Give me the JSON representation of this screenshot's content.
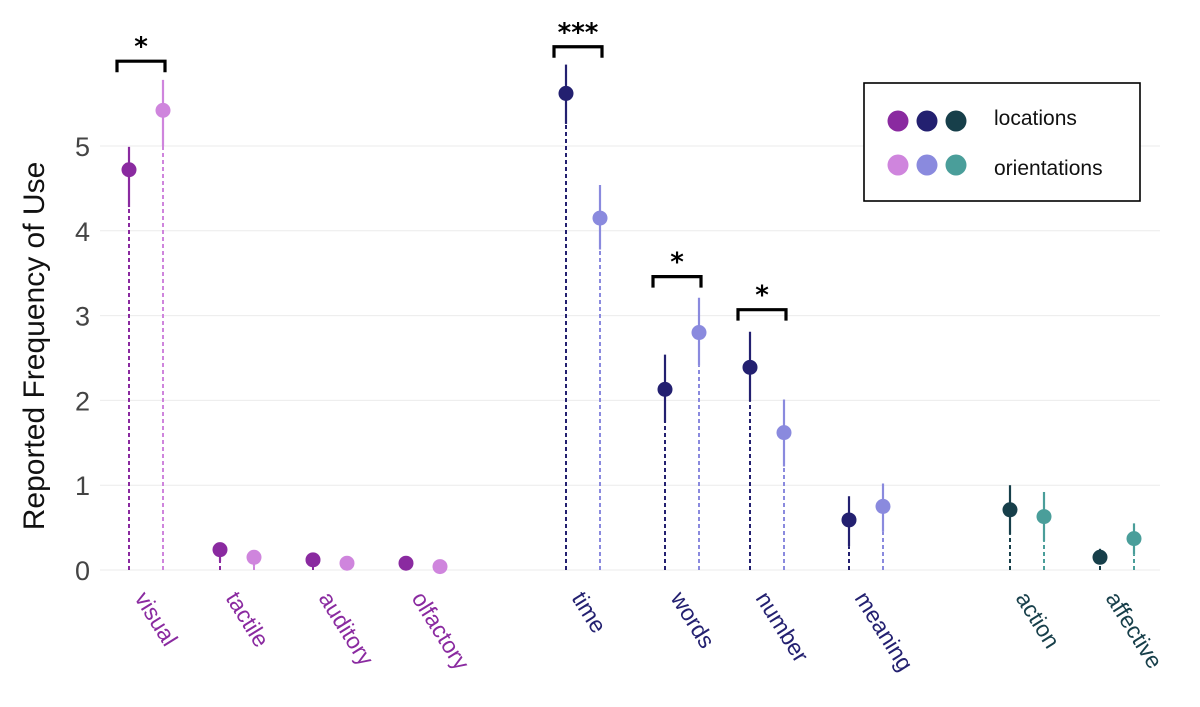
{
  "chart_data": {
    "type": "dot-whisker",
    "ylabel": "Reported Frequency of Use",
    "xlabel": "",
    "ylim": [
      0,
      6.35
    ],
    "yticks": [
      0,
      1,
      2,
      3,
      4,
      5
    ],
    "series": [
      {
        "name": "locations"
      },
      {
        "name": "orientations"
      }
    ],
    "legend": {
      "position": "top-right",
      "entries": [
        "locations",
        "orientations"
      ],
      "location_colors": [
        "#8a2aa0",
        "#232070",
        "#173f4a"
      ],
      "orientation_colors": [
        "#cf85dd",
        "#8a8ade",
        "#4a9e9a"
      ]
    },
    "categories": [
      {
        "label": "visual",
        "group": "sensory",
        "label_color": "#8a2aa0",
        "locations": {
          "value": 4.72,
          "low": 4.28,
          "high": 4.99,
          "color": "#8a2aa0"
        },
        "orientations": {
          "value": 5.42,
          "low": 5.0,
          "high": 5.78,
          "color": "#cf85dd"
        }
      },
      {
        "label": "tactile",
        "group": "sensory",
        "label_color": "#8a2aa0",
        "locations": {
          "value": 0.24,
          "low": 0.1,
          "high": 0.32,
          "color": "#8a2aa0"
        },
        "orientations": {
          "value": 0.15,
          "low": 0.04,
          "high": 0.22,
          "color": "#cf85dd"
        }
      },
      {
        "label": "auditory",
        "group": "sensory",
        "label_color": "#8a2aa0",
        "locations": {
          "value": 0.12,
          "low": 0.05,
          "high": 0.18,
          "color": "#8a2aa0"
        },
        "orientations": {
          "value": 0.08,
          "low": 0.03,
          "high": 0.13,
          "color": "#cf85dd"
        }
      },
      {
        "label": "olfactory",
        "group": "sensory",
        "label_color": "#8a2aa0",
        "locations": {
          "value": 0.08,
          "low": 0.03,
          "high": 0.13,
          "color": "#8a2aa0"
        },
        "orientations": {
          "value": 0.04,
          "low": 0.0,
          "high": 0.09,
          "color": "#cf85dd"
        }
      },
      {
        "label": "time",
        "group": "abstract",
        "label_color": "#232070",
        "locations": {
          "value": 5.62,
          "low": 5.26,
          "high": 5.96,
          "color": "#232070"
        },
        "orientations": {
          "value": 4.15,
          "low": 3.78,
          "high": 4.54,
          "color": "#8a8ade"
        }
      },
      {
        "label": "words",
        "group": "abstract",
        "label_color": "#232070",
        "locations": {
          "value": 2.13,
          "low": 1.74,
          "high": 2.54,
          "color": "#232070"
        },
        "orientations": {
          "value": 2.8,
          "low": 2.41,
          "high": 3.21,
          "color": "#8a8ade"
        }
      },
      {
        "label": "number",
        "group": "abstract",
        "label_color": "#232070",
        "locations": {
          "value": 2.39,
          "low": 1.99,
          "high": 2.81,
          "color": "#232070"
        },
        "orientations": {
          "value": 1.62,
          "low": 1.22,
          "high": 2.01,
          "color": "#8a8ade"
        }
      },
      {
        "label": "meaning",
        "group": "abstract",
        "label_color": "#232070",
        "locations": {
          "value": 0.59,
          "low": 0.28,
          "high": 0.87,
          "color": "#232070"
        },
        "orientations": {
          "value": 0.75,
          "low": 0.45,
          "high": 1.02,
          "color": "#8a8ade"
        }
      },
      {
        "label": "action",
        "group": "other",
        "label_color": "#173f4a",
        "locations": {
          "value": 0.71,
          "low": 0.42,
          "high": 1.0,
          "color": "#173f4a"
        },
        "orientations": {
          "value": 0.63,
          "low": 0.34,
          "high": 0.92,
          "color": "#4a9e9a"
        }
      },
      {
        "label": "affective",
        "group": "other",
        "label_color": "#173f4a",
        "locations": {
          "value": 0.15,
          "low": 0.07,
          "high": 0.25,
          "color": "#173f4a"
        },
        "orientations": {
          "value": 0.37,
          "low": 0.18,
          "high": 0.55,
          "color": "#4a9e9a"
        }
      }
    ],
    "significance": [
      {
        "category": "visual",
        "stars": "*",
        "bracket_y": 6.0
      },
      {
        "category": "time",
        "stars": "***",
        "bracket_y": 6.17
      },
      {
        "category": "words",
        "stars": "*",
        "bracket_y": 3.46
      },
      {
        "category": "number",
        "stars": "*",
        "bracket_y": 3.07
      }
    ]
  }
}
